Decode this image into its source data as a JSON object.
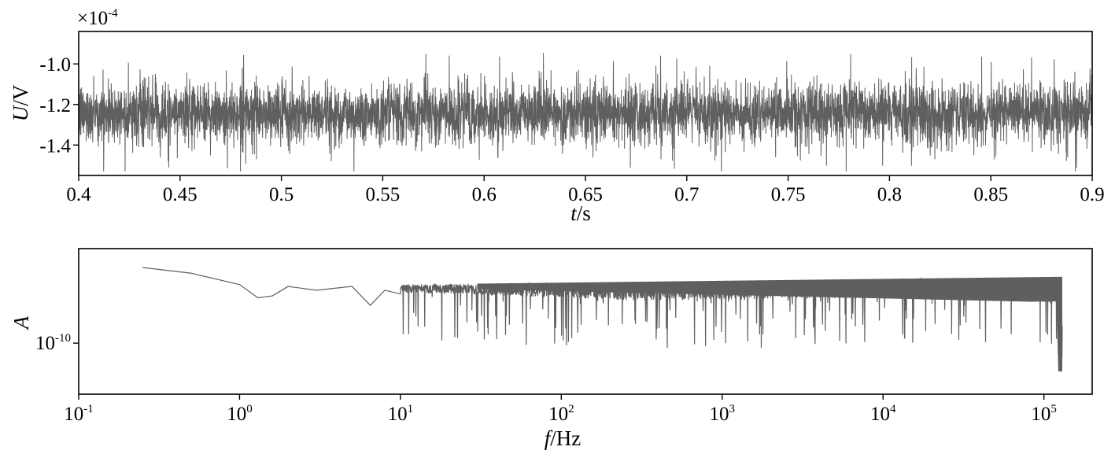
{
  "colors": {
    "signal": "#5f5f5f",
    "spectrum": "#5f5f5f",
    "axes": "#000000"
  },
  "chart_data": [
    {
      "type": "line",
      "xlabel_var": "t",
      "xlabel_unit": "/s",
      "ylabel_var": "U",
      "ylabel_unit": "/V",
      "y_offset_base": "×10",
      "y_offset_exp": "-4",
      "xlim": [
        0.4,
        0.9
      ],
      "ylim": [
        -1.55,
        -0.84
      ],
      "x_ticks": [
        "0.4",
        "0.45",
        "0.5",
        "0.55",
        "0.6",
        "0.65",
        "0.7",
        "0.75",
        "0.8",
        "0.85",
        "0.9"
      ],
      "y_ticks": [
        "-1.0",
        "-1.2",
        "-1.4"
      ],
      "series": [
        {
          "mean": -1.245,
          "typical_range": [
            -1.42,
            -1.04
          ],
          "extreme_range": [
            -1.53,
            -0.91
          ]
        }
      ]
    },
    {
      "type": "line",
      "xscale": "log",
      "yscale": "log",
      "xlabel_var": "f",
      "xlabel_unit": "/Hz",
      "ylabel_var": "A",
      "x_ticks": [
        {
          "base": "10",
          "exp": "-1"
        },
        {
          "base": "10",
          "exp": "0"
        },
        {
          "base": "10",
          "exp": "1"
        },
        {
          "base": "10",
          "exp": "2"
        },
        {
          "base": "10",
          "exp": "3"
        },
        {
          "base": "10",
          "exp": "4"
        },
        {
          "base": "10",
          "exp": "5"
        }
      ],
      "y_ticks": [
        {
          "base": "10",
          "exp": "-10"
        }
      ],
      "xlim_exp": [
        -1,
        5.3
      ],
      "ylim_exp": [
        -10.27,
        -9.5
      ],
      "series": [
        {
          "low_freq_points": [
            [
              0.25,
              -9.6
            ],
            [
              0.5,
              -9.63
            ],
            [
              1.0,
              -9.69
            ],
            [
              1.3,
              -9.76
            ],
            [
              1.6,
              -9.75
            ],
            [
              2.0,
              -9.7
            ],
            [
              3.0,
              -9.72
            ],
            [
              5.0,
              -9.7
            ],
            [
              6.5,
              -9.8
            ],
            [
              8.0,
              -9.72
            ],
            [
              10.0,
              -9.74
            ]
          ],
          "band_top_exp": -9.69,
          "band_floor_exp": -9.95,
          "high_freq_drop_hz": 120000,
          "end_hz": 130000,
          "end_low_exp": -10.2
        }
      ]
    }
  ]
}
